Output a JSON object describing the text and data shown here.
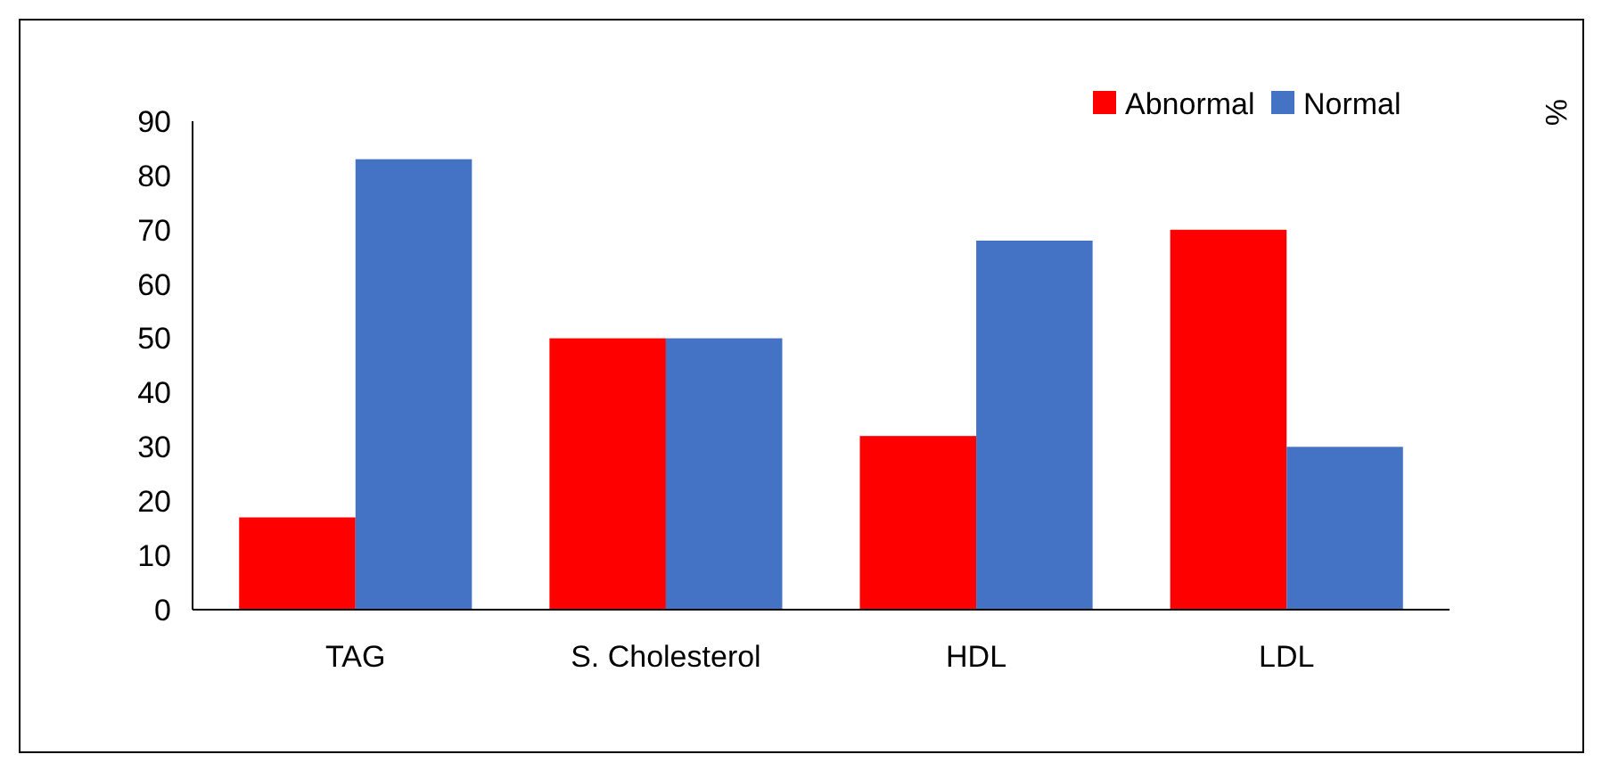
{
  "chart_data": {
    "type": "bar",
    "ylabel": "%",
    "categories": [
      "TAG",
      "S. Cholesterol",
      "HDL",
      "LDL"
    ],
    "series": [
      {
        "name": "Abnormal",
        "color": "#ff0000",
        "values": [
          17,
          50,
          32,
          70
        ]
      },
      {
        "name": "Normal",
        "color": "#4472c4",
        "values": [
          83,
          50,
          68,
          30
        ]
      }
    ],
    "ylim": [
      0,
      90
    ],
    "yticks": [
      0,
      10,
      20,
      30,
      40,
      50,
      60,
      70,
      80,
      90
    ],
    "legend": "top right",
    "grid": false
  }
}
